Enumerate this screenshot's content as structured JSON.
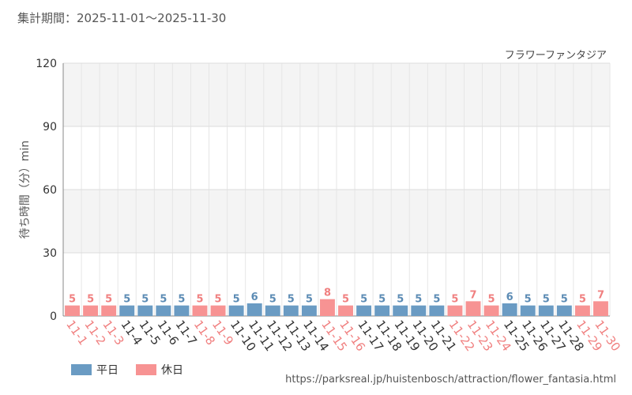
{
  "header": {
    "period_text": "集計期間：2025-11-01〜2025-11-30"
  },
  "footer": {
    "url": "https://parksreal.jp/huistenbosch/attraction/flower_fantasia.html"
  },
  "colors": {
    "weekday": "#6a9bc3",
    "holiday": "#f79393",
    "weekday_text": "#5b8bb4",
    "holiday_text": "#f07f7f"
  },
  "chart_data": {
    "type": "bar",
    "title": "",
    "subtitle": "フラワーファンタジア",
    "ylabel": "待ち時間（分）min",
    "xlabel": "",
    "ylim": [
      0,
      120
    ],
    "yticks": [
      0,
      30,
      60,
      90,
      120
    ],
    "grid": true,
    "legend_position": "bottom-left",
    "legend": [
      {
        "key": "weekday",
        "label": "平日"
      },
      {
        "key": "holiday",
        "label": "休日"
      }
    ],
    "categories": [
      "11-1",
      "11-2",
      "11-3",
      "11-4",
      "11-5",
      "11-6",
      "11-7",
      "11-8",
      "11-9",
      "11-10",
      "11-11",
      "11-12",
      "11-13",
      "11-14",
      "11-15",
      "11-16",
      "11-17",
      "11-18",
      "11-19",
      "11-20",
      "11-21",
      "11-22",
      "11-23",
      "11-24",
      "11-25",
      "11-26",
      "11-27",
      "11-28",
      "11-29",
      "11-30"
    ],
    "values": [
      5,
      5,
      5,
      5,
      5,
      5,
      5,
      5,
      5,
      5,
      6,
      5,
      5,
      5,
      8,
      5,
      5,
      5,
      5,
      5,
      5,
      5,
      7,
      5,
      6,
      5,
      5,
      5,
      5,
      7
    ],
    "day_type": [
      "holiday",
      "holiday",
      "holiday",
      "weekday",
      "weekday",
      "weekday",
      "weekday",
      "holiday",
      "holiday",
      "weekday",
      "weekday",
      "weekday",
      "weekday",
      "weekday",
      "holiday",
      "holiday",
      "weekday",
      "weekday",
      "weekday",
      "weekday",
      "weekday",
      "holiday",
      "holiday",
      "holiday",
      "weekday",
      "weekday",
      "weekday",
      "weekday",
      "holiday",
      "holiday"
    ]
  }
}
